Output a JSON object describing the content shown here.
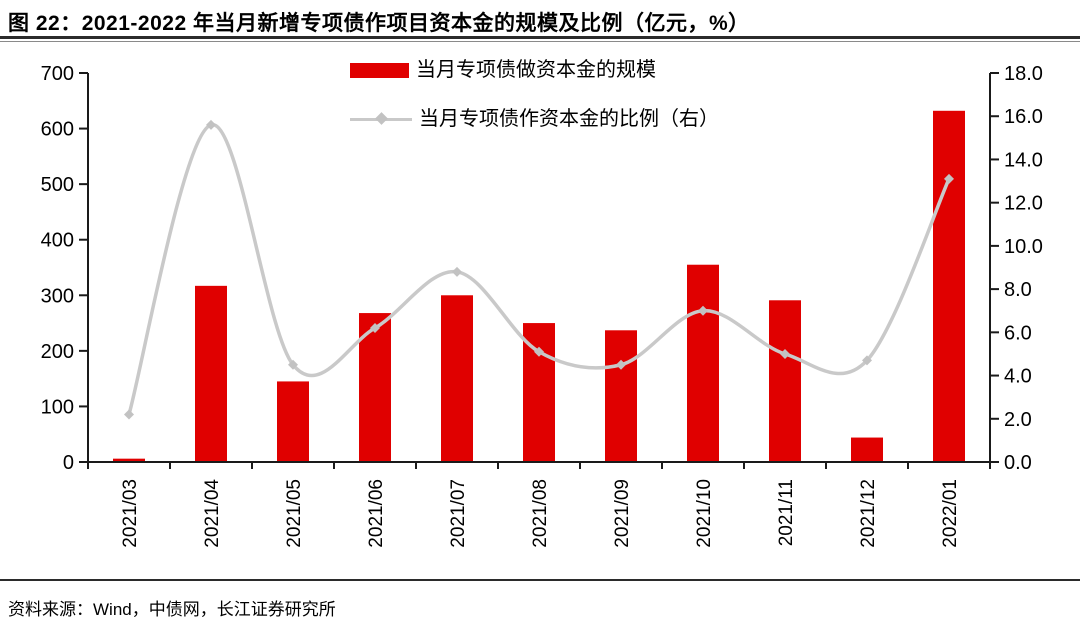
{
  "header": {
    "title": "图 22：2021-2022 年当月新增专项债作项目资本金的规模及比例（亿元，%）"
  },
  "legend": {
    "bar_label": "当月专项债做资本金的规模",
    "line_label": "当月专项债作资本金的比例（右）"
  },
  "footer": {
    "source": "资料来源：Wind，中债网，长江证券研究所"
  },
  "colors": {
    "bar": "#e00000",
    "line": "#c9c9c9",
    "marker": "#c2c2c2",
    "axis": "#1a1a1a"
  },
  "chart_data": {
    "type": "bar+line",
    "title": "图 22：2021-2022 年当月新增专项债作项目资本金的规模及比例（亿元，%）",
    "categories": [
      "2021/03",
      "2021/04",
      "2021/05",
      "2021/06",
      "2021/07",
      "2021/08",
      "2021/09",
      "2021/10",
      "2021/11",
      "2021/12",
      "2022/01"
    ],
    "series": [
      {
        "name": "当月专项债做资本金的规模",
        "type": "bar",
        "axis": "left",
        "unit": "亿元",
        "values": [
          6,
          317,
          145,
          268,
          300,
          250,
          237,
          355,
          291,
          44,
          632
        ]
      },
      {
        "name": "当月专项债作资本金的比例（右）",
        "type": "line",
        "axis": "right",
        "unit": "%",
        "values": [
          2.2,
          15.6,
          4.5,
          6.2,
          8.8,
          5.1,
          4.5,
          7.0,
          5.0,
          4.7,
          13.1
        ]
      }
    ],
    "left_axis": {
      "min": 0,
      "max": 700,
      "step": 100,
      "tick_labels": [
        "0",
        "100",
        "200",
        "300",
        "400",
        "500",
        "600",
        "700"
      ]
    },
    "right_axis": {
      "min": 0,
      "max": 18,
      "step": 2,
      "tick_labels": [
        "0.0",
        "2.0",
        "4.0",
        "6.0",
        "8.0",
        "10.0",
        "12.0",
        "14.0",
        "16.0",
        "18.0"
      ]
    },
    "grid": false,
    "legend_position": "top-center",
    "x_label_rotation": -90
  }
}
